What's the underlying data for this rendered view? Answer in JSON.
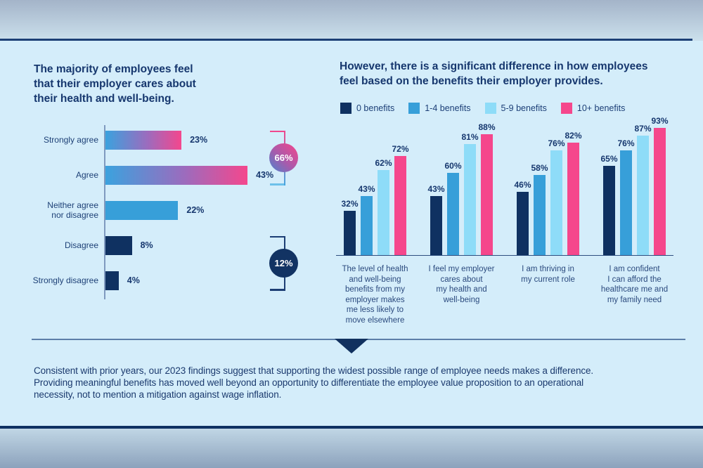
{
  "note": "Consistent with prior years, our 2023 findings suggest that supporting the widest possible range of employee needs makes a difference.\nProviding meaningful benefits has moved well beyond an opportunity to differentiate the employee value proposition to an operational\nnecessity, not to mention a mitigation against wage inflation.",
  "colors": {
    "navy": "#0f3161",
    "medium_blue": "#379fd9",
    "light_blue": "#8edcf8",
    "pink": "#f5478c",
    "text_navy": "#16376e",
    "panel_bg": "#d4edfa",
    "bar_gradient_start": "#3ba2de",
    "bar_gradient_end": "#f4478d"
  },
  "chart_data": [
    {
      "type": "bar",
      "orientation": "horizontal",
      "title": "The majority of employees feel\nthat their employer cares about\ntheir health and well-being.",
      "categories": [
        "Strongly agree",
        "Agree",
        "Neither agree\nnor disagree",
        "Disagree",
        "Strongly disagree"
      ],
      "values": [
        23,
        43,
        22,
        8,
        4
      ],
      "bar_styles": [
        "gradient",
        "gradient",
        "medium_blue",
        "navy",
        "navy"
      ],
      "xlim": [
        0,
        50
      ],
      "grid": false,
      "annotations": [
        {
          "label": "66%",
          "row_start": 0,
          "row_end": 1,
          "style": "gradient"
        },
        {
          "label": "12%",
          "row_start": 3,
          "row_end": 4,
          "style": "navy"
        }
      ]
    },
    {
      "type": "bar",
      "orientation": "vertical",
      "title": "However, there is a significant difference in how employees\nfeel based on the benefits their employer provides.",
      "categories": [
        "The level of health\nand well-being\nbenefits from my\nemployer makes\nme less likely to\nmove elsewhere",
        "I feel my employer\ncares about\nmy health and\nwell-being",
        "I am thriving in\nmy current role",
        "I am confident\nI can afford the\nhealthcare me and\nmy family need"
      ],
      "series": [
        {
          "name": "0 benefits",
          "color": "#0f3161",
          "values": [
            32,
            43,
            46,
            65
          ]
        },
        {
          "name": "1-4 benefits",
          "color": "#379fd9",
          "values": [
            43,
            60,
            58,
            76
          ]
        },
        {
          "name": "5-9 benefits",
          "color": "#8edcf8",
          "values": [
            62,
            81,
            76,
            87
          ]
        },
        {
          "name": "10+ benefits",
          "color": "#f5478c",
          "values": [
            72,
            88,
            82,
            93
          ]
        }
      ],
      "ylim": [
        0,
        100
      ],
      "grid": false,
      "legend_position": "top"
    }
  ]
}
